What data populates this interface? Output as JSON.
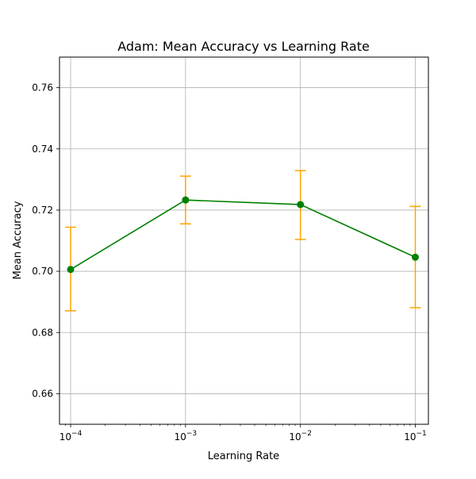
{
  "chart_data": {
    "type": "line",
    "title": "Adam: Mean Accuracy vs Learning Rate",
    "xlabel": "Learning Rate",
    "ylabel": "Mean Accuracy",
    "xscale": "log",
    "xlim": [
      8e-05,
      0.13
    ],
    "ylim": [
      0.65,
      0.77
    ],
    "grid": true,
    "legend": "none",
    "x_ticks": [
      {
        "value": 0.0001,
        "base": "10",
        "exp": "−4"
      },
      {
        "value": 0.001,
        "base": "10",
        "exp": "−3"
      },
      {
        "value": 0.01,
        "base": "10",
        "exp": "−2"
      },
      {
        "value": 0.1,
        "base": "10",
        "exp": "−1"
      }
    ],
    "y_ticks": [
      "0.66",
      "0.68",
      "0.70",
      "0.72",
      "0.74",
      "0.76"
    ],
    "series": [
      {
        "x": [
          0.0001,
          0.001,
          0.01,
          0.1
        ],
        "y": [
          0.7006,
          0.7233,
          0.7218,
          0.7046
        ],
        "err_low": [
          0.0135,
          0.0078,
          0.0114,
          0.0165
        ],
        "err_high": [
          0.0138,
          0.0078,
          0.0111,
          0.0166
        ],
        "line_color": "#008000",
        "marker_color": "#008000",
        "error_color": "#ffa500"
      }
    ]
  }
}
